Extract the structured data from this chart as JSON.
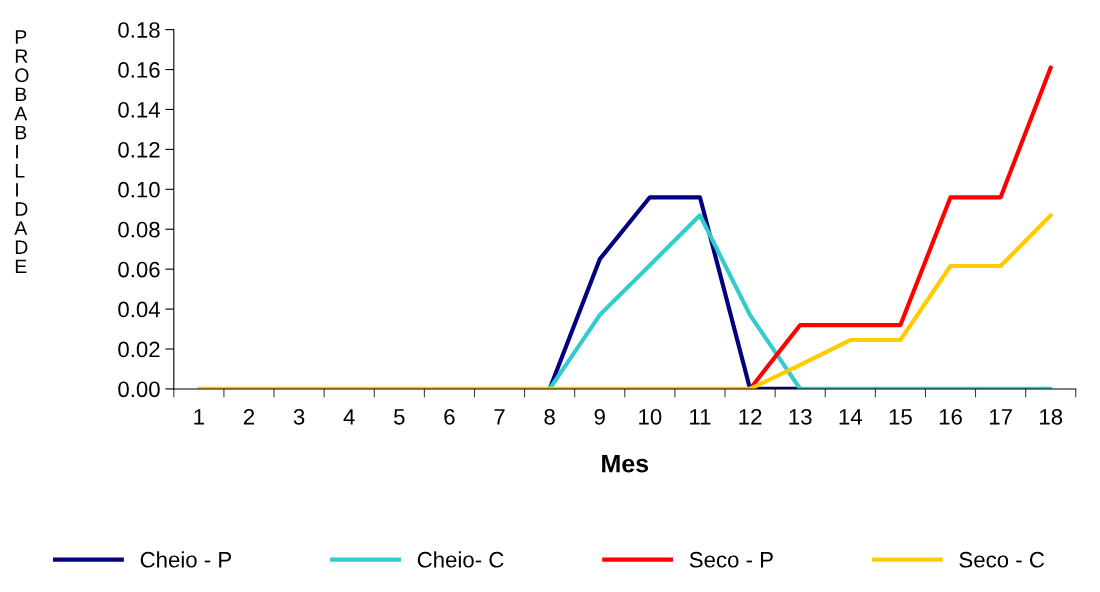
{
  "chart_data": {
    "type": "line",
    "xlabel": "Mes",
    "ylabel": "PROBABILIDADE",
    "categories": [
      "1",
      "2",
      "3",
      "4",
      "5",
      "6",
      "7",
      "8",
      "9",
      "10",
      "11",
      "12",
      "13",
      "14",
      "15",
      "16",
      "17",
      "18"
    ],
    "ylim": [
      0,
      0.18
    ],
    "yticks": [
      {
        "value": 0,
        "label": "0.00"
      },
      {
        "value": 0.02,
        "label": "0.02"
      },
      {
        "value": 0.04,
        "label": "0.04"
      },
      {
        "value": 0.06,
        "label": "0.06"
      },
      {
        "value": 0.08,
        "label": "0.08"
      },
      {
        "value": 0.1,
        "label": "0.10"
      },
      {
        "value": 0.12,
        "label": "0.12"
      },
      {
        "value": 0.14,
        "label": "0.14"
      },
      {
        "value": 0.16,
        "label": "0.16"
      },
      {
        "value": 0.18,
        "label": "0.18"
      }
    ],
    "grid": false,
    "legend": "bottom",
    "marker": "none",
    "line_style": "solid",
    "series": [
      {
        "name": "Cheio - P",
        "color": "#000080",
        "values": [
          null,
          null,
          null,
          null,
          null,
          null,
          null,
          0,
          0.065,
          0.096,
          0.096,
          0,
          0,
          null,
          null,
          null,
          null,
          null
        ]
      },
      {
        "name": "Cheio- C",
        "color": "#33cccc",
        "values": [
          null,
          null,
          null,
          null,
          null,
          null,
          null,
          0,
          0.037,
          0.062,
          0.087,
          0.037,
          0,
          0,
          0,
          0,
          0,
          0
        ]
      },
      {
        "name": "Seco - P",
        "color": "#ff0000",
        "values": [
          null,
          null,
          null,
          null,
          null,
          null,
          null,
          null,
          null,
          null,
          null,
          0,
          0.032,
          0.032,
          0.032,
          0.096,
          0.096,
          0.161
        ]
      },
      {
        "name": "Seco - C",
        "color": "#ffcc00",
        "values": [
          0,
          0,
          0,
          0,
          0,
          0,
          0,
          0,
          0,
          0,
          0,
          0,
          0.012,
          0.0245,
          0.0245,
          0.0616,
          0.0616,
          0.087
        ]
      }
    ]
  }
}
